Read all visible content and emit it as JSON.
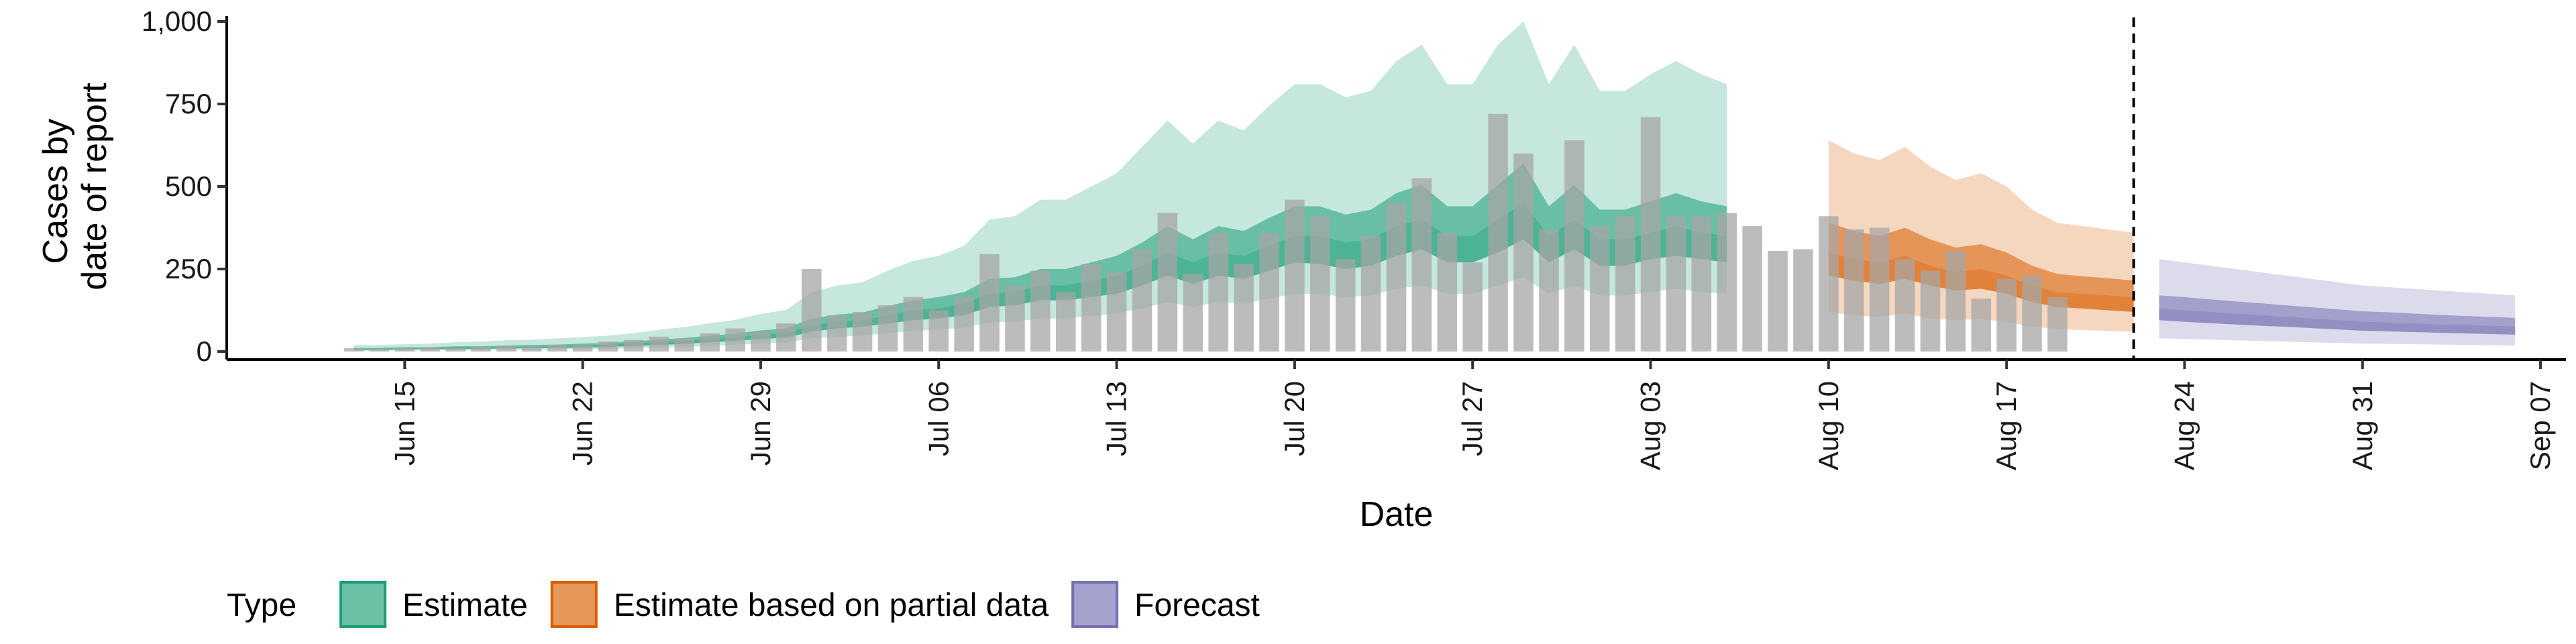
{
  "chart_data": {
    "type": "bar",
    "xlabel": "Date",
    "ylabel": [
      "Cases by",
      "date of report"
    ],
    "ylim": [
      0,
      1000
    ],
    "yticks": [
      0,
      250,
      500,
      750,
      1000
    ],
    "ytick_labels": [
      "0",
      "250",
      "500",
      "750",
      "1,000"
    ],
    "xlim": [
      "2020-06-08",
      "2020-09-08"
    ],
    "xticks": [
      "2020-06-15",
      "2020-06-22",
      "2020-06-29",
      "2020-07-06",
      "2020-07-13",
      "2020-07-20",
      "2020-07-27",
      "2020-08-03",
      "2020-08-10",
      "2020-08-17",
      "2020-08-24",
      "2020-08-31",
      "2020-09-07"
    ],
    "xtick_labels": [
      "Jun 15",
      "Jun 22",
      "Jun 29",
      "Jul 06",
      "Jul 13",
      "Jul 20",
      "Jul 27",
      "Aug 03",
      "Aug 10",
      "Aug 17",
      "Aug 24",
      "Aug 31",
      "Sep 07"
    ],
    "bars": {
      "start_date": "2020-06-13",
      "values": [
        10,
        8,
        10,
        12,
        10,
        15,
        18,
        15,
        20,
        18,
        30,
        35,
        45,
        40,
        55,
        70,
        60,
        85,
        250,
        110,
        120,
        140,
        165,
        125,
        165,
        295,
        200,
        245,
        180,
        265,
        240,
        310,
        420,
        235,
        360,
        265,
        360,
        460,
        410,
        280,
        350,
        450,
        525,
        360,
        270,
        720,
        600,
        370,
        640,
        380,
        410,
        710,
        410,
        410,
        420,
        380,
        305,
        310,
        410,
        370,
        375,
        280,
        245,
        305,
        160,
        220,
        230,
        165
      ],
      "color": "#a6a6a6"
    },
    "vline_date": "2020-08-22",
    "series": [
      {
        "name": "Estimate",
        "color": "#1b9e77",
        "start_date": "2020-06-13",
        "median": [
          8,
          8,
          10,
          10,
          12,
          12,
          14,
          15,
          16,
          18,
          20,
          24,
          28,
          32,
          38,
          42,
          50,
          55,
          80,
          90,
          95,
          110,
          125,
          130,
          145,
          175,
          180,
          200,
          200,
          215,
          230,
          260,
          300,
          270,
          300,
          290,
          320,
          350,
          350,
          330,
          340,
          380,
          400,
          350,
          350,
          400,
          450,
          350,
          400,
          340,
          340,
          360,
          380,
          360,
          350
        ],
        "low50": [
          5,
          5,
          7,
          7,
          8,
          8,
          10,
          10,
          11,
          12,
          14,
          17,
          20,
          23,
          28,
          32,
          38,
          42,
          60,
          70,
          75,
          85,
          95,
          100,
          110,
          135,
          140,
          155,
          155,
          165,
          175,
          200,
          230,
          205,
          230,
          220,
          245,
          270,
          265,
          250,
          260,
          290,
          310,
          270,
          270,
          300,
          340,
          270,
          310,
          260,
          260,
          280,
          290,
          280,
          270
        ],
        "high50": [
          11,
          11,
          13,
          13,
          16,
          16,
          18,
          20,
          21,
          24,
          26,
          31,
          36,
          41,
          48,
          54,
          64,
          70,
          100,
          112,
          118,
          138,
          155,
          165,
          180,
          220,
          225,
          250,
          250,
          270,
          290,
          330,
          380,
          340,
          380,
          365,
          405,
          440,
          440,
          415,
          430,
          480,
          505,
          440,
          440,
          505,
          570,
          440,
          505,
          430,
          430,
          455,
          480,
          455,
          440
        ],
        "low90": [
          2,
          2,
          3,
          3,
          4,
          4,
          5,
          5,
          6,
          7,
          8,
          10,
          12,
          14,
          17,
          20,
          24,
          27,
          40,
          45,
          48,
          56,
          62,
          66,
          72,
          88,
          90,
          100,
          100,
          108,
          115,
          130,
          150,
          135,
          150,
          145,
          160,
          175,
          175,
          165,
          170,
          190,
          200,
          175,
          175,
          200,
          225,
          175,
          200,
          170,
          170,
          180,
          190,
          180,
          175
        ],
        "high90": [
          20,
          20,
          22,
          24,
          28,
          30,
          34,
          36,
          40,
          44,
          48,
          56,
          66,
          74,
          86,
          96,
          114,
          126,
          180,
          200,
          210,
          245,
          275,
          290,
          320,
          400,
          410,
          460,
          460,
          500,
          540,
          620,
          700,
          630,
          700,
          670,
          745,
          810,
          810,
          770,
          790,
          880,
          930,
          810,
          810,
          930,
          1000,
          810,
          930,
          790,
          790,
          840,
          880,
          840,
          810
        ]
      },
      {
        "name": "Estimate based on partial data",
        "color": "#d95f02",
        "start_date": "2020-08-10",
        "median": [
          300,
          280,
          270,
          290,
          260,
          240,
          250,
          230,
          200,
          180,
          175,
          170,
          165
        ],
        "low50": [
          230,
          215,
          205,
          220,
          200,
          185,
          190,
          175,
          150,
          135,
          130,
          125,
          120
        ],
        "high50": [
          390,
          365,
          350,
          375,
          340,
          315,
          325,
          300,
          260,
          235,
          228,
          222,
          215
        ],
        "low90": [
          120,
          110,
          105,
          115,
          100,
          95,
          98,
          90,
          75,
          68,
          65,
          62,
          60
        ],
        "high90": [
          640,
          600,
          580,
          620,
          560,
          520,
          540,
          500,
          430,
          390,
          380,
          370,
          360
        ]
      },
      {
        "name": "Forecast",
        "color": "#7570b3",
        "start_date": "2020-08-23",
        "median": [
          130,
          125,
          120,
          115,
          110,
          105,
          100,
          95,
          90,
          88,
          85,
          82,
          80,
          78,
          76
        ],
        "low50": [
          95,
          90,
          86,
          82,
          78,
          75,
          71,
          67,
          63,
          61,
          59,
          57,
          55,
          53,
          51
        ],
        "high50": [
          170,
          165,
          158,
          152,
          146,
          140,
          134,
          128,
          122,
          119,
          115,
          111,
          108,
          105,
          102
        ],
        "low90": [
          40,
          38,
          36,
          34,
          32,
          30,
          28,
          26,
          24,
          23,
          22,
          21,
          20,
          19,
          18
        ],
        "high90": [
          280,
          270,
          260,
          250,
          240,
          230,
          220,
          210,
          200,
          195,
          190,
          185,
          180,
          175,
          170
        ]
      }
    ],
    "legend": {
      "title": "Type",
      "placement": "bottom",
      "items": [
        {
          "label": "Estimate",
          "color": "#1b9e77"
        },
        {
          "label": "Estimate based on partial data",
          "color": "#d95f02"
        },
        {
          "label": "Forecast",
          "color": "#7570b3"
        }
      ]
    }
  }
}
